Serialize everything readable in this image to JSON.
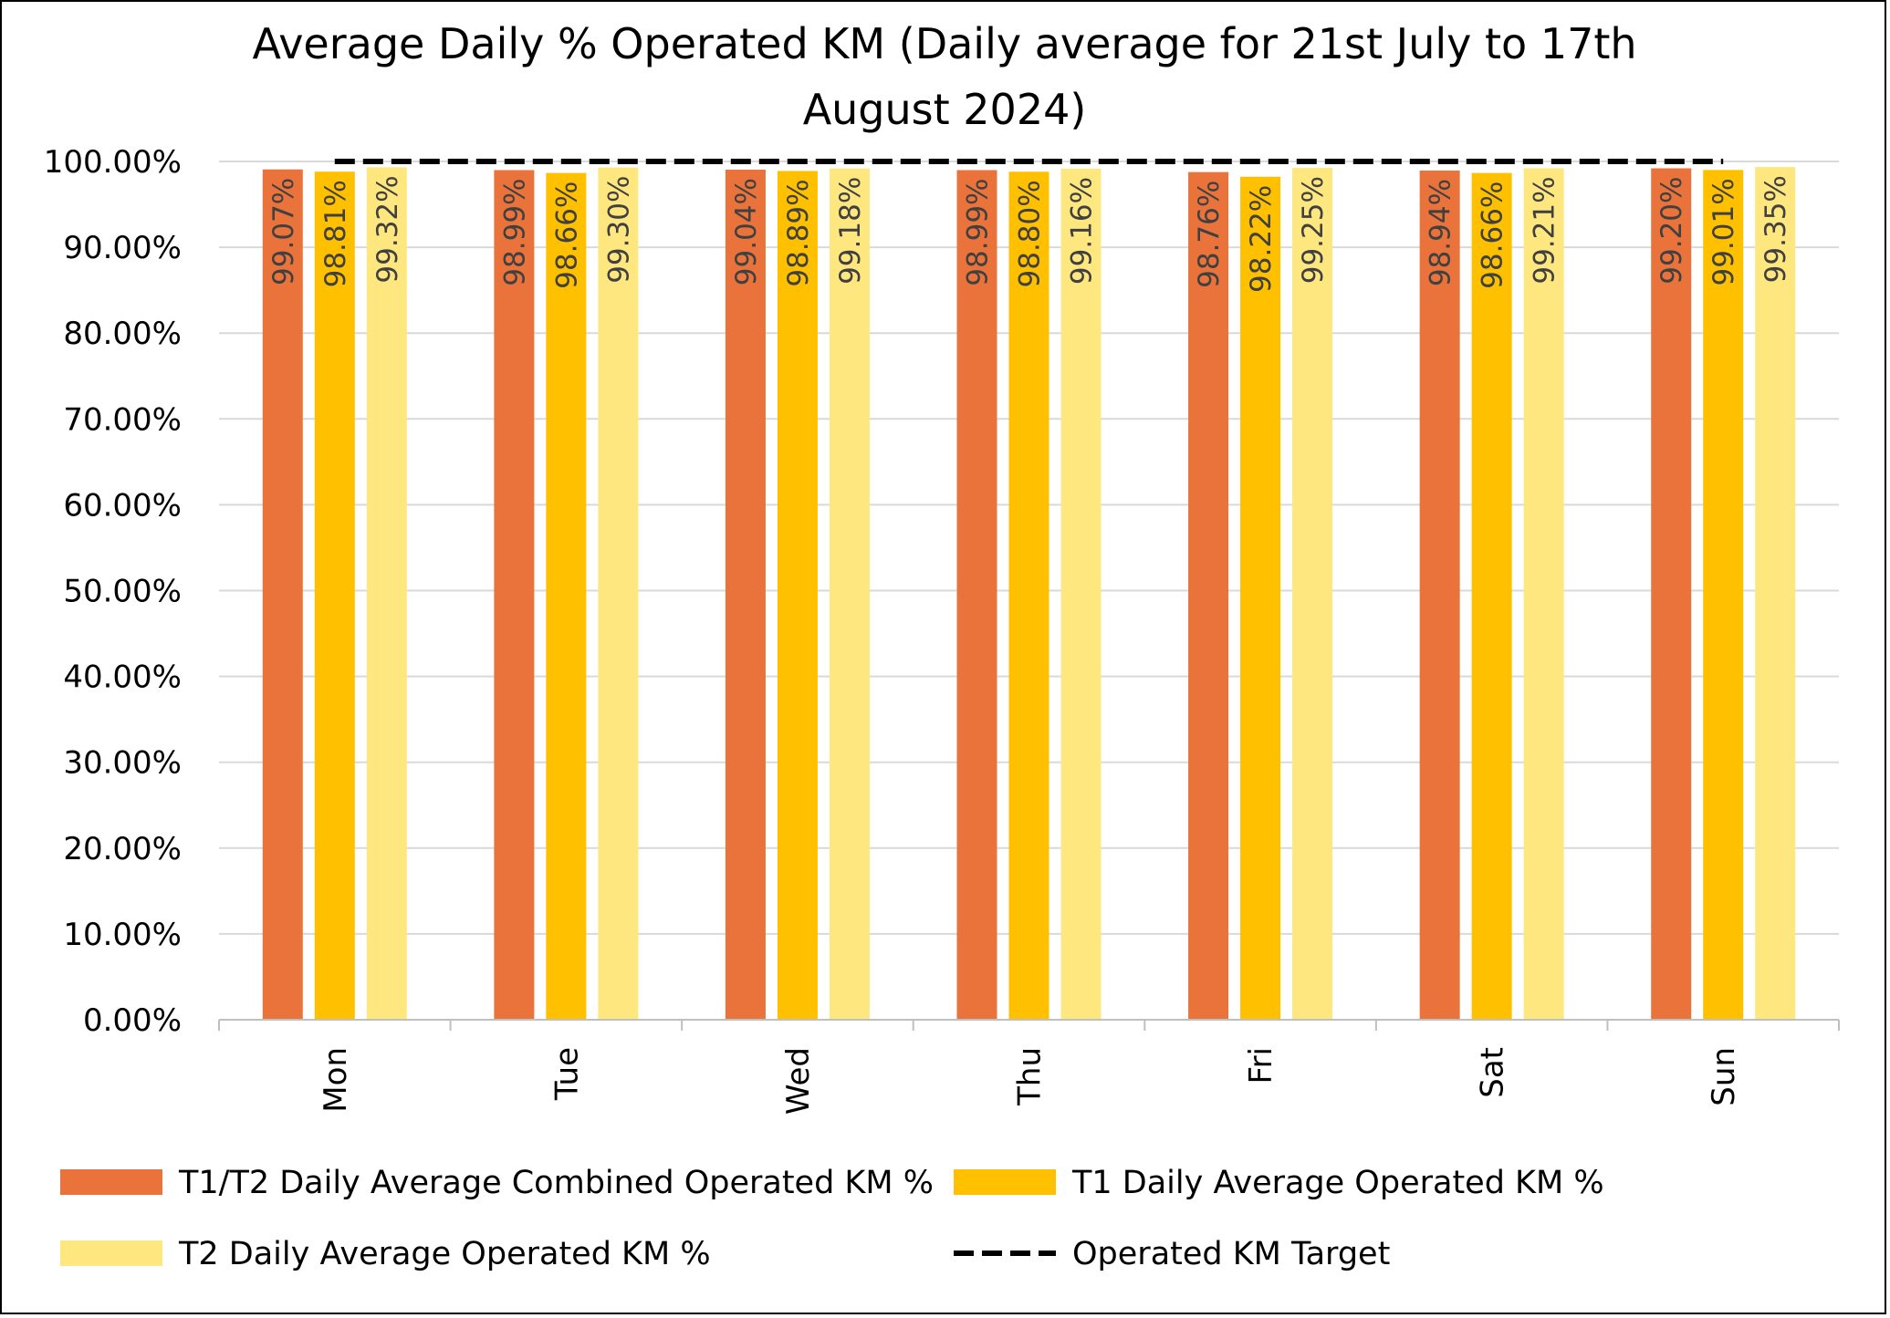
{
  "chart_data": {
    "type": "bar",
    "title": "Average Daily % Operated KM (Daily average for 21st July to 17th August 2024)",
    "title_lines": [
      "Average Daily % Operated KM (Daily average for 21st July to 17th",
      "August 2024)"
    ],
    "xlabel": "",
    "ylabel": "",
    "ylim": [
      0,
      100
    ],
    "yticks": [
      0,
      10,
      20,
      30,
      40,
      50,
      60,
      70,
      80,
      90,
      100
    ],
    "ytick_labels": [
      "0.00%",
      "10.00%",
      "20.00%",
      "30.00%",
      "40.00%",
      "50.00%",
      "60.00%",
      "70.00%",
      "80.00%",
      "90.00%",
      "100.00%"
    ],
    "grid": true,
    "categories": [
      "Mon",
      "Tue",
      "Wed",
      "Thu",
      "Fri",
      "Sat",
      "Sun"
    ],
    "series": [
      {
        "name": "T1/T2 Daily Average Combined Operated KM %",
        "color": "#E9733B",
        "values": [
          99.07,
          98.99,
          99.04,
          98.99,
          98.76,
          98.94,
          99.2
        ],
        "labels": [
          "99.07%",
          "98.99%",
          "99.04%",
          "98.99%",
          "98.76%",
          "98.94%",
          "99.20%"
        ]
      },
      {
        "name": "T1 Daily Average Operated KM %",
        "color": "#FFC000",
        "values": [
          98.81,
          98.66,
          98.89,
          98.8,
          98.22,
          98.66,
          99.01
        ],
        "labels": [
          "98.81%",
          "98.66%",
          "98.89%",
          "98.80%",
          "98.22%",
          "98.66%",
          "99.01%"
        ]
      },
      {
        "name": "T2 Daily Average Operated KM %",
        "color": "#FFE780",
        "values": [
          99.32,
          99.3,
          99.18,
          99.16,
          99.25,
          99.21,
          99.35
        ],
        "labels": [
          "99.32%",
          "99.30%",
          "99.18%",
          "99.16%",
          "99.25%",
          "99.21%",
          "99.35%"
        ]
      }
    ],
    "target": {
      "name": "Operated KM Target",
      "value": 100,
      "color": "#000000",
      "style": "dashed"
    },
    "legend": {
      "placement": "bottom",
      "entries": [
        "T1/T2 Daily Average Combined Operated KM %",
        "T1 Daily Average Operated KM %",
        "T2 Daily Average Operated KM %",
        "Operated KM Target"
      ]
    },
    "colors": {
      "gridline": "#D9D9D9",
      "axis": "#BFBFBF",
      "data_label": "#404040"
    }
  }
}
